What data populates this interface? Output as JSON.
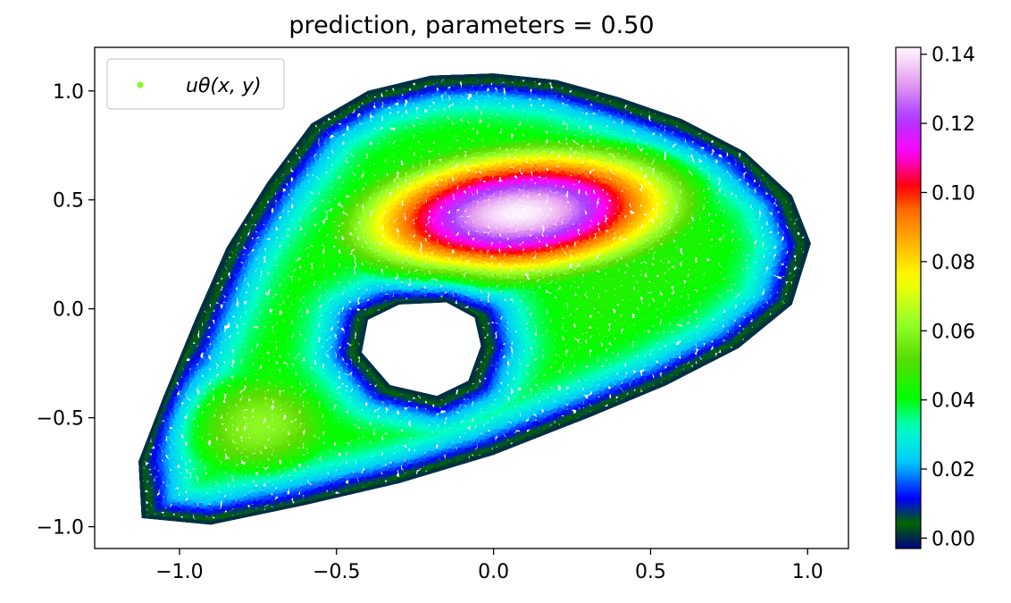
{
  "chart_data": {
    "type": "scatter",
    "title": "prediction, parameters = 0.50",
    "xlabel": "",
    "ylabel": "",
    "xlim": [
      -1.27,
      1.13
    ],
    "ylim": [
      -1.1,
      1.2
    ],
    "x_ticks": [
      {
        "value": -1.0,
        "label": "−1.0"
      },
      {
        "value": -0.5,
        "label": "−0.5"
      },
      {
        "value": 0.0,
        "label": "0.0"
      },
      {
        "value": 0.5,
        "label": "0.5"
      },
      {
        "value": 1.0,
        "label": "1.0"
      }
    ],
    "y_ticks": [
      {
        "value": -1.0,
        "label": "−1.0"
      },
      {
        "value": -0.5,
        "label": "−0.5"
      },
      {
        "value": 0.0,
        "label": "0.0"
      },
      {
        "value": 0.5,
        "label": "0.5"
      },
      {
        "value": 1.0,
        "label": "1.0"
      }
    ],
    "grid": false,
    "legend": {
      "placement": "top-left",
      "entries": [
        {
          "label": "uθ(x, y)",
          "color": "#7fff2a"
        }
      ]
    },
    "colorbar": {
      "colormap": "gist_ncar",
      "range": [
        -0.003,
        0.142
      ],
      "ticks": [
        {
          "value": 0.0,
          "label": "0.00"
        },
        {
          "value": 0.02,
          "label": "0.02"
        },
        {
          "value": 0.04,
          "label": "0.04"
        },
        {
          "value": 0.06,
          "label": "0.06"
        },
        {
          "value": 0.08,
          "label": "0.08"
        },
        {
          "value": 0.1,
          "label": "0.10"
        },
        {
          "value": 0.12,
          "label": "0.12"
        },
        {
          "value": 0.14,
          "label": "0.14"
        }
      ]
    },
    "domain": {
      "outer_boundary": [
        [
          -1.12,
          -0.96
        ],
        [
          -1.13,
          -0.7
        ],
        [
          -1.05,
          -0.4
        ],
        [
          -0.95,
          -0.05
        ],
        [
          -0.85,
          0.28
        ],
        [
          -0.72,
          0.58
        ],
        [
          -0.58,
          0.85
        ],
        [
          -0.4,
          1.0
        ],
        [
          -0.2,
          1.07
        ],
        [
          0.0,
          1.08
        ],
        [
          0.2,
          1.05
        ],
        [
          0.4,
          0.97
        ],
        [
          0.6,
          0.87
        ],
        [
          0.8,
          0.72
        ],
        [
          0.95,
          0.52
        ],
        [
          1.01,
          0.3
        ],
        [
          0.95,
          0.02
        ],
        [
          0.78,
          -0.18
        ],
        [
          0.55,
          -0.35
        ],
        [
          0.3,
          -0.5
        ],
        [
          0.0,
          -0.67
        ],
        [
          -0.3,
          -0.8
        ],
        [
          -0.6,
          -0.9
        ],
        [
          -0.9,
          -0.99
        ]
      ],
      "hole_boundary": [
        [
          -0.04,
          -0.17
        ],
        [
          -0.08,
          -0.33
        ],
        [
          -0.18,
          -0.4
        ],
        [
          -0.33,
          -0.35
        ],
        [
          -0.42,
          -0.2
        ],
        [
          -0.4,
          -0.05
        ],
        [
          -0.3,
          0.02
        ],
        [
          -0.15,
          0.03
        ],
        [
          -0.06,
          -0.04
        ]
      ]
    },
    "value_field": {
      "peak_value": 0.142,
      "peak_center": [
        0.08,
        0.44
      ],
      "peak_radii": [
        0.4,
        0.22
      ],
      "peak_rotation_deg": 10,
      "secondary_value": 0.062,
      "secondary_center": [
        -0.76,
        -0.53
      ],
      "secondary_radii": [
        0.28,
        0.26
      ]
    }
  }
}
